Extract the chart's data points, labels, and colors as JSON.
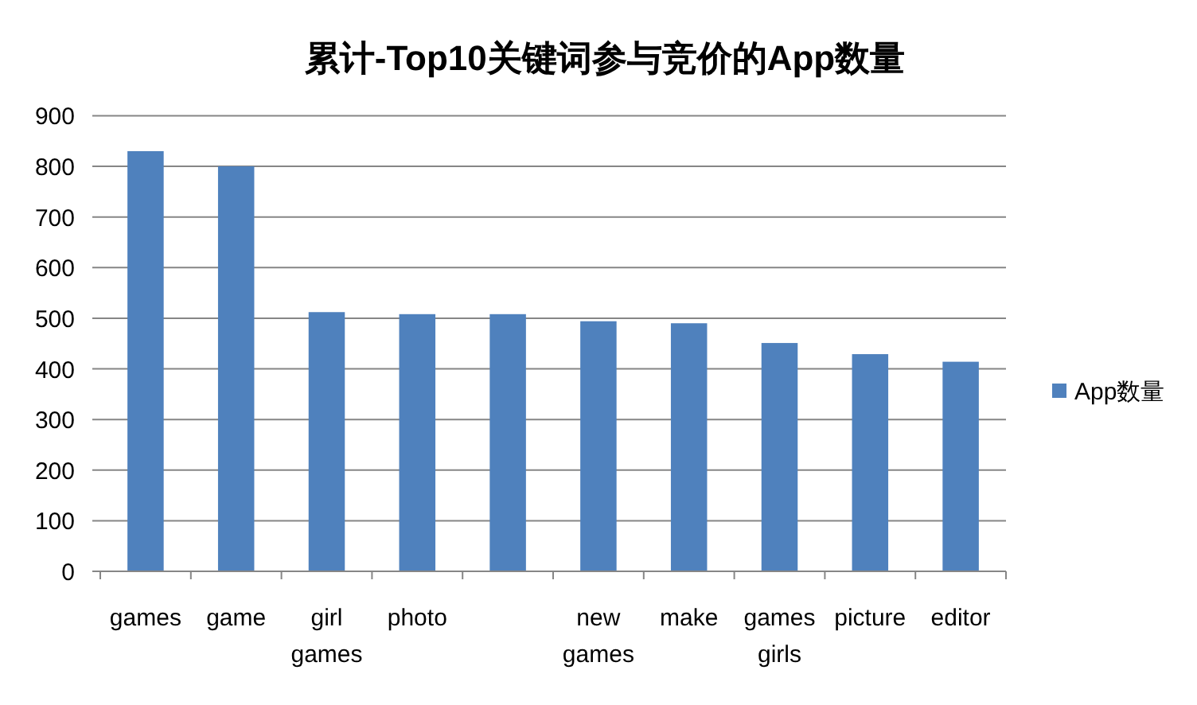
{
  "chart_data": {
    "type": "bar",
    "title": "累计-Top10关键词参与竞价的App数量",
    "categories": [
      "games",
      "game",
      "girl games",
      "photo",
      null,
      "new games",
      "make",
      "games girls",
      "picture",
      "editor"
    ],
    "series": [
      {
        "name": "App数量",
        "color": "#4f81bd",
        "values": [
          830,
          800,
          512,
          508,
          508,
          494,
          490,
          451,
          429,
          414
        ]
      }
    ],
    "ylim": [
      0,
      900
    ],
    "yticks": [
      0,
      100,
      200,
      300,
      400,
      500,
      600,
      700,
      800,
      900
    ],
    "grid": "y",
    "legend": "right"
  }
}
